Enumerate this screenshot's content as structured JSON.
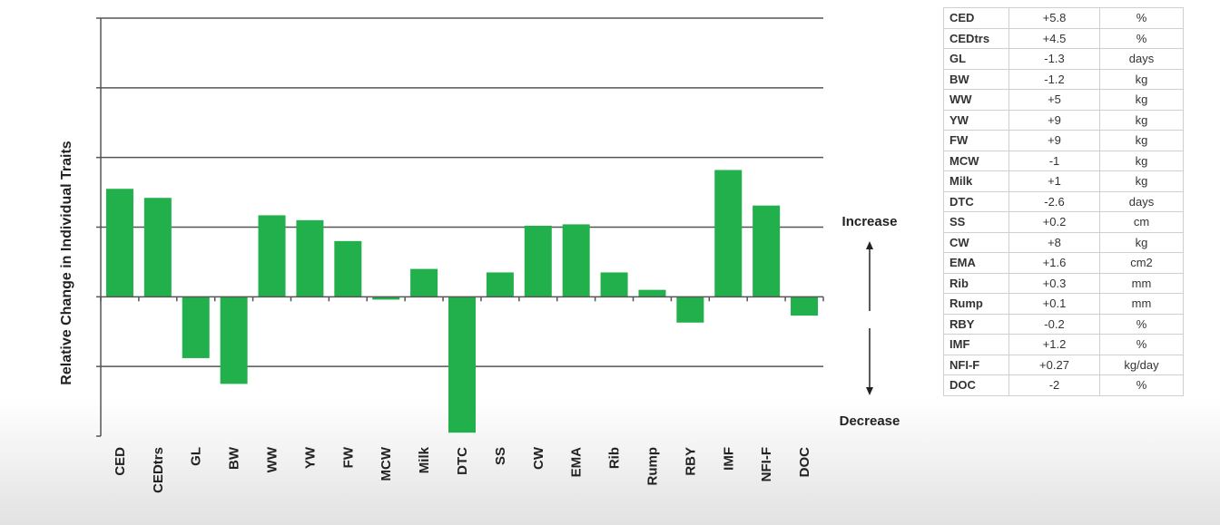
{
  "chart_data": {
    "type": "bar",
    "title": "",
    "xlabel": "",
    "ylabel": "Relative Change in Individual Traits",
    "categories": [
      "CED",
      "CEDtrs",
      "GL",
      "BW",
      "WW",
      "YW",
      "FW",
      "MCW",
      "Milk",
      "DTC",
      "SS",
      "CW",
      "EMA",
      "Rib",
      "Rump",
      "RBY",
      "IMF",
      "NFI-F",
      "DOC"
    ],
    "values": [
      1.55,
      1.42,
      -0.88,
      -1.25,
      1.17,
      1.1,
      0.8,
      -0.04,
      0.4,
      -1.95,
      0.35,
      1.02,
      1.04,
      0.35,
      0.1,
      -0.37,
      1.82,
      1.31,
      -0.27
    ],
    "ylim": [
      -2,
      4
    ],
    "grid": true,
    "bar_color": "#21b04b",
    "annotations": {
      "increase": "Increase",
      "decrease": "Decrease"
    }
  },
  "table": {
    "rows": [
      {
        "trait": "CED",
        "value": "+5.8",
        "unit": "%"
      },
      {
        "trait": "CEDtrs",
        "value": "+4.5",
        "unit": "%"
      },
      {
        "trait": "GL",
        "value": "-1.3",
        "unit": "days"
      },
      {
        "trait": "BW",
        "value": "-1.2",
        "unit": "kg"
      },
      {
        "trait": "WW",
        "value": "+5",
        "unit": "kg"
      },
      {
        "trait": "YW",
        "value": "+9",
        "unit": "kg"
      },
      {
        "trait": "FW",
        "value": "+9",
        "unit": "kg"
      },
      {
        "trait": "MCW",
        "value": "-1",
        "unit": "kg"
      },
      {
        "trait": "Milk",
        "value": "+1",
        "unit": "kg"
      },
      {
        "trait": "DTC",
        "value": "-2.6",
        "unit": "days"
      },
      {
        "trait": "SS",
        "value": "+0.2",
        "unit": "cm"
      },
      {
        "trait": "CW",
        "value": "+8",
        "unit": "kg"
      },
      {
        "trait": "EMA",
        "value": "+1.6",
        "unit": "cm2"
      },
      {
        "trait": "Rib",
        "value": "+0.3",
        "unit": "mm"
      },
      {
        "trait": "Rump",
        "value": "+0.1",
        "unit": "mm"
      },
      {
        "trait": "RBY",
        "value": "-0.2",
        "unit": "%"
      },
      {
        "trait": "IMF",
        "value": "+1.2",
        "unit": "%"
      },
      {
        "trait": "NFI-F",
        "value": "+0.27",
        "unit": "kg/day"
      },
      {
        "trait": "DOC",
        "value": "-2",
        "unit": "%"
      }
    ]
  }
}
